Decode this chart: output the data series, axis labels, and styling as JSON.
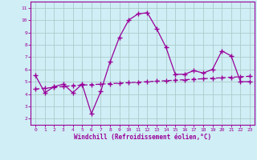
{
  "x": [
    0,
    1,
    2,
    3,
    4,
    5,
    6,
    7,
    8,
    9,
    10,
    11,
    12,
    13,
    14,
    15,
    16,
    17,
    18,
    19,
    20,
    21,
    22,
    23
  ],
  "y_windchill": [
    5.5,
    4.1,
    4.6,
    4.8,
    4.1,
    4.8,
    2.4,
    4.2,
    6.6,
    8.6,
    10.0,
    10.5,
    10.6,
    9.3,
    7.8,
    5.6,
    5.6,
    5.9,
    5.7,
    6.0,
    7.5,
    7.1,
    5.0,
    5.0
  ],
  "y_linear": [
    4.4,
    4.47,
    4.54,
    4.61,
    4.68,
    4.72,
    4.76,
    4.8,
    4.84,
    4.88,
    4.92,
    4.96,
    5.0,
    5.04,
    5.08,
    5.12,
    5.16,
    5.2,
    5.24,
    5.28,
    5.32,
    5.36,
    5.4,
    5.44
  ],
  "line_color": "#990099",
  "bg_color": "#d0eef5",
  "grid_color": "#aacccc",
  "xlabel": "Windchill (Refroidissement éolien,°C)",
  "xlim": [
    -0.5,
    23.5
  ],
  "ylim": [
    1.5,
    11.5
  ],
  "yticks": [
    2,
    3,
    4,
    5,
    6,
    7,
    8,
    9,
    10,
    11
  ],
  "xticks": [
    0,
    1,
    2,
    3,
    4,
    5,
    6,
    7,
    8,
    9,
    10,
    11,
    12,
    13,
    14,
    15,
    16,
    17,
    18,
    19,
    20,
    21,
    22,
    23
  ],
  "marker": "+",
  "markersize": 4,
  "linewidth": 0.9
}
